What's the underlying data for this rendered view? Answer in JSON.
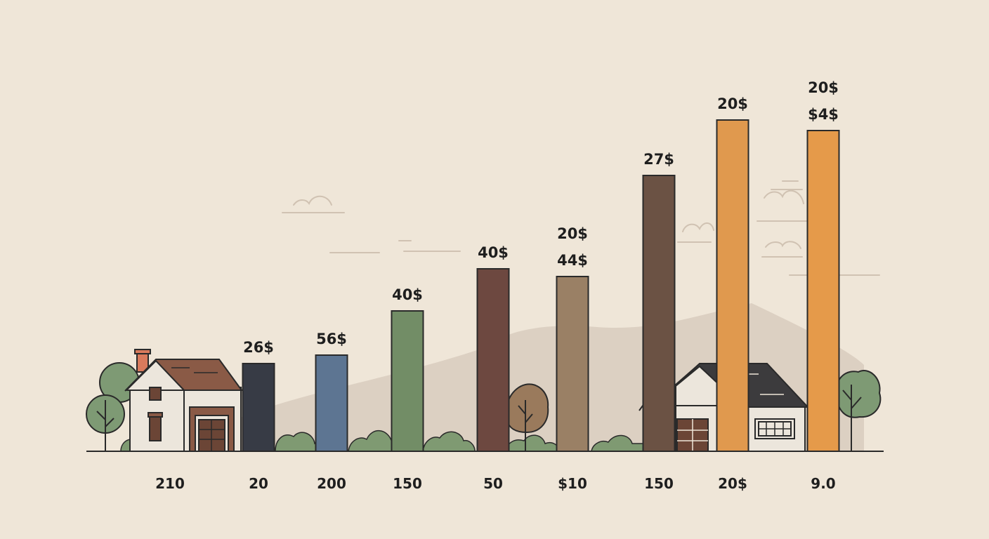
{
  "chart_data": {
    "type": "bar",
    "title": "",
    "xlabel": "",
    "ylabel": "",
    "ylim": [
      0,
      500
    ],
    "grid": false,
    "categories": [
      "210",
      "20",
      "200",
      "150",
      "50",
      "$10",
      "150",
      "20$",
      "9.0"
    ],
    "bars": [
      {
        "category": "20",
        "value": 125,
        "color": "#373b45",
        "labels": [
          "26$"
        ]
      },
      {
        "category": "200",
        "value": 137,
        "color": "#5d7592",
        "labels": [
          "56$"
        ]
      },
      {
        "category": "150",
        "value": 200,
        "color": "#728d66",
        "labels": [
          "40$"
        ]
      },
      {
        "category": "50",
        "value": 260,
        "color": "#6d4840",
        "labels": [
          "40$"
        ]
      },
      {
        "category": "$10",
        "value": 249,
        "color": "#9a8065",
        "labels": [
          "20$",
          "44$"
        ]
      },
      {
        "category": "150",
        "value": 393,
        "color": "#6b5244",
        "labels": [
          "27$"
        ]
      },
      {
        "category": "20$",
        "value": 472,
        "color": "#e0994e",
        "labels": [
          "20$"
        ]
      },
      {
        "category": "9.0",
        "value": 457,
        "color": "#e59a4a",
        "labels": [
          "20$",
          "$4$"
        ]
      }
    ]
  },
  "colors": {
    "background": "#efe6d8",
    "outline": "#2a2a2a",
    "hill": "#d9cdbf",
    "bush": "#7f9a72",
    "tree_foliage": "#7e9a74",
    "house_wall": "#ece6dc",
    "house_roof_left": "#8a5a46",
    "house_roof_right": "#3c3b3d",
    "door": "#6b4536"
  }
}
